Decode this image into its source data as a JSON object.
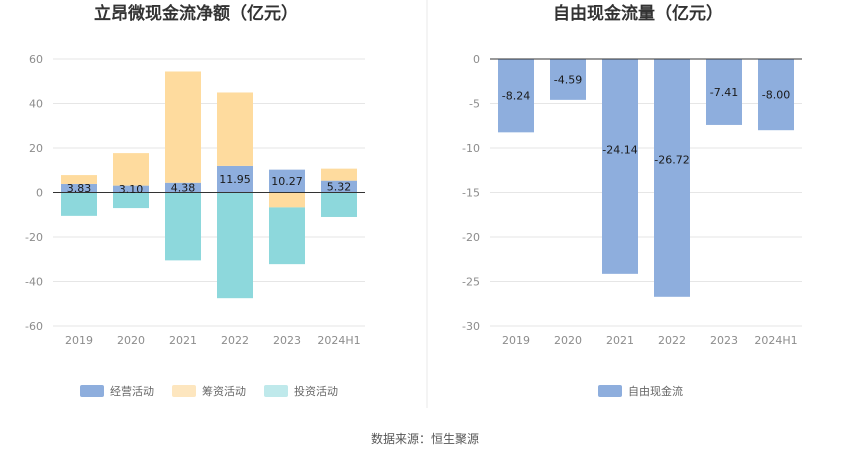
{
  "source": "数据来源：恒生聚源",
  "colors": {
    "operating": "#8eaedd",
    "financing": "#fedb9e",
    "investing": "#8dd8dc",
    "fcf": "#8eaedd",
    "grid": "#e6e6e6",
    "axis": "#333333",
    "divider": "#e8e8e8"
  },
  "chart_data": [
    {
      "type": "bar",
      "stacked": true,
      "title": "立昂微现金流净额（亿元）",
      "categories": [
        "2019",
        "2020",
        "2021",
        "2022",
        "2023",
        "2024H1"
      ],
      "ylim": [
        -60,
        60
      ],
      "yticks": [
        60,
        40,
        20,
        0,
        -20,
        -40,
        -60
      ],
      "series": [
        {
          "name": "经营活动",
          "values": [
            3.83,
            3.1,
            4.38,
            11.95,
            10.27,
            5.32
          ]
        },
        {
          "name": "筹资活动",
          "values": [
            4.0,
            14.6,
            50.0,
            33.0,
            -6.7,
            5.4
          ]
        },
        {
          "name": "投资活动",
          "values": [
            -10.5,
            -7.0,
            -30.5,
            -47.5,
            -25.5,
            -11.0
          ]
        }
      ],
      "data_labels": [
        "3.83",
        "3.10",
        "4.38",
        "11.95",
        "10.27",
        "5.32"
      ],
      "legend": "bottom"
    },
    {
      "type": "bar",
      "title": "自由现金流量（亿元）",
      "categories": [
        "2019",
        "2020",
        "2021",
        "2022",
        "2023",
        "2024H1"
      ],
      "ylim": [
        -30,
        0
      ],
      "yticks": [
        0,
        -5,
        -10,
        -15,
        -20,
        -25,
        -30
      ],
      "series": [
        {
          "name": "自由现金流",
          "values": [
            -8.24,
            -4.59,
            -24.14,
            -26.72,
            -7.41,
            -8.0
          ]
        }
      ],
      "data_labels": [
        "-8.24",
        "-4.59",
        "-24.14",
        "-26.72",
        "-7.41",
        "-8.00"
      ],
      "legend": "bottom"
    }
  ]
}
